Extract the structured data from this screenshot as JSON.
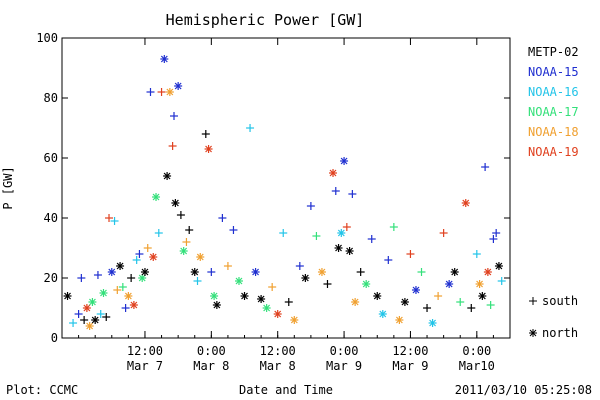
{
  "chart_data": {
    "type": "scatter",
    "title": "Hemispheric Power [GW]",
    "ylabel": "P [GW]",
    "xlabel": "Date and Time",
    "ylim": [
      0,
      100
    ],
    "yticks": [
      "0",
      "20",
      "40",
      "60",
      "80",
      "100"
    ],
    "xlim": [
      "2011-03-06 21:00",
      "2011-03-10 06:00"
    ],
    "xticks": [
      {
        "time": "2011-03-07 12:00",
        "line1": "12:00",
        "line2": "Mar 7"
      },
      {
        "time": "2011-03-08 00:00",
        "line1": "0:00",
        "line2": "Mar 8"
      },
      {
        "time": "2011-03-08 12:00",
        "line1": "12:00",
        "line2": "Mar 8"
      },
      {
        "time": "2011-03-09 00:00",
        "line1": "0:00",
        "line2": "Mar 9"
      },
      {
        "time": "2011-03-09 12:00",
        "line1": "12:00",
        "line2": "Mar 9"
      },
      {
        "time": "2011-03-10 00:00",
        "line1": "0:00",
        "line2": "Mar10"
      }
    ],
    "legend_position": "right",
    "series": [
      {
        "name": "METP-02",
        "color": "#000000"
      },
      {
        "name": "NOAA-15",
        "color": "#1f2fd0"
      },
      {
        "name": "NOAA-16",
        "color": "#22c4e8"
      },
      {
        "name": "NOAA-17",
        "color": "#33e07a"
      },
      {
        "name": "NOAA-18",
        "color": "#f0a030"
      },
      {
        "name": "NOAA-19",
        "color": "#e0401e"
      }
    ],
    "markers": [
      {
        "symbol": "+",
        "label": "south"
      },
      {
        "symbol": "*",
        "label": "north"
      }
    ],
    "points": [
      [
        "2011-03-06 22:00",
        14,
        0,
        "*"
      ],
      [
        "2011-03-06 23:00",
        5,
        2,
        "+"
      ],
      [
        "2011-03-07 00:00",
        8,
        1,
        "+"
      ],
      [
        "2011-03-07 00:30",
        20,
        1,
        "+"
      ],
      [
        "2011-03-07 01:00",
        6,
        0,
        "+"
      ],
      [
        "2011-03-07 01:30",
        10,
        5,
        "*"
      ],
      [
        "2011-03-07 02:00",
        4,
        4,
        "*"
      ],
      [
        "2011-03-07 02:30",
        12,
        3,
        "*"
      ],
      [
        "2011-03-07 03:00",
        6,
        0,
        "*"
      ],
      [
        "2011-03-07 03:30",
        21,
        1,
        "+"
      ],
      [
        "2011-03-07 04:00",
        8,
        2,
        "+"
      ],
      [
        "2011-03-07 04:30",
        15,
        3,
        "*"
      ],
      [
        "2011-03-07 05:00",
        7,
        0,
        "+"
      ],
      [
        "2011-03-07 05:30",
        40,
        5,
        "+"
      ],
      [
        "2011-03-07 06:00",
        22,
        1,
        "*"
      ],
      [
        "2011-03-07 06:30",
        39,
        2,
        "+"
      ],
      [
        "2011-03-07 07:00",
        16,
        4,
        "+"
      ],
      [
        "2011-03-07 07:30",
        24,
        0,
        "*"
      ],
      [
        "2011-03-07 08:00",
        17,
        3,
        "+"
      ],
      [
        "2011-03-07 08:30",
        10,
        1,
        "+"
      ],
      [
        "2011-03-07 09:00",
        14,
        4,
        "*"
      ],
      [
        "2011-03-07 09:30",
        20,
        0,
        "+"
      ],
      [
        "2011-03-07 10:00",
        11,
        5,
        "*"
      ],
      [
        "2011-03-07 10:30",
        26,
        2,
        "+"
      ],
      [
        "2011-03-07 11:00",
        28,
        1,
        "+"
      ],
      [
        "2011-03-07 11:30",
        20,
        3,
        "*"
      ],
      [
        "2011-03-07 12:00",
        22,
        0,
        "*"
      ],
      [
        "2011-03-07 12:30",
        30,
        4,
        "+"
      ],
      [
        "2011-03-07 13:00",
        82,
        1,
        "+"
      ],
      [
        "2011-03-07 13:30",
        27,
        5,
        "*"
      ],
      [
        "2011-03-07 14:00",
        47,
        3,
        "*"
      ],
      [
        "2011-03-07 14:30",
        35,
        2,
        "+"
      ],
      [
        "2011-03-07 15:00",
        82,
        5,
        "+"
      ],
      [
        "2011-03-07 15:30",
        93,
        1,
        "*"
      ],
      [
        "2011-03-07 16:00",
        54,
        0,
        "*"
      ],
      [
        "2011-03-07 16:30",
        82,
        4,
        "*"
      ],
      [
        "2011-03-07 17:00",
        64,
        5,
        "+"
      ],
      [
        "2011-03-07 17:15",
        74,
        1,
        "+"
      ],
      [
        "2011-03-07 17:30",
        45,
        0,
        "*"
      ],
      [
        "2011-03-07 18:00",
        84,
        1,
        "*"
      ],
      [
        "2011-03-07 18:30",
        41,
        0,
        "+"
      ],
      [
        "2011-03-07 19:00",
        29,
        3,
        "*"
      ],
      [
        "2011-03-07 19:30",
        32,
        4,
        "+"
      ],
      [
        "2011-03-07 20:00",
        36,
        0,
        "+"
      ],
      [
        "2011-03-07 21:00",
        22,
        0,
        "*"
      ],
      [
        "2011-03-07 21:30",
        19,
        2,
        "+"
      ],
      [
        "2011-03-07 22:00",
        27,
        4,
        "*"
      ],
      [
        "2011-03-07 23:00",
        68,
        0,
        "+"
      ],
      [
        "2011-03-07 23:30",
        63,
        5,
        "*"
      ],
      [
        "2011-03-08 00:00",
        22,
        1,
        "+"
      ],
      [
        "2011-03-08 00:30",
        14,
        3,
        "*"
      ],
      [
        "2011-03-08 01:00",
        11,
        0,
        "*"
      ],
      [
        "2011-03-08 02:00",
        40,
        1,
        "+"
      ],
      [
        "2011-03-08 03:00",
        24,
        4,
        "+"
      ],
      [
        "2011-03-08 04:00",
        36,
        1,
        "+"
      ],
      [
        "2011-03-08 05:00",
        19,
        3,
        "*"
      ],
      [
        "2011-03-08 06:00",
        14,
        0,
        "*"
      ],
      [
        "2011-03-08 07:00",
        70,
        2,
        "+"
      ],
      [
        "2011-03-08 08:00",
        22,
        1,
        "*"
      ],
      [
        "2011-03-08 09:00",
        13,
        0,
        "*"
      ],
      [
        "2011-03-08 10:00",
        10,
        3,
        "*"
      ],
      [
        "2011-03-08 11:00",
        17,
        4,
        "+"
      ],
      [
        "2011-03-08 12:00",
        8,
        5,
        "*"
      ],
      [
        "2011-03-08 13:00",
        35,
        2,
        "+"
      ],
      [
        "2011-03-08 14:00",
        12,
        0,
        "+"
      ],
      [
        "2011-03-08 15:00",
        6,
        4,
        "*"
      ],
      [
        "2011-03-08 16:00",
        24,
        1,
        "+"
      ],
      [
        "2011-03-08 17:00",
        20,
        0,
        "*"
      ],
      [
        "2011-03-08 18:00",
        44,
        1,
        "+"
      ],
      [
        "2011-03-08 19:00",
        34,
        3,
        "+"
      ],
      [
        "2011-03-08 20:00",
        22,
        4,
        "*"
      ],
      [
        "2011-03-08 21:00",
        18,
        0,
        "+"
      ],
      [
        "2011-03-08 22:00",
        55,
        5,
        "*"
      ],
      [
        "2011-03-08 22:30",
        49,
        1,
        "+"
      ],
      [
        "2011-03-08 23:00",
        30,
        0,
        "*"
      ],
      [
        "2011-03-08 23:30",
        35,
        2,
        "*"
      ],
      [
        "2011-03-09 00:00",
        59,
        1,
        "*"
      ],
      [
        "2011-03-09 00:30",
        37,
        5,
        "+"
      ],
      [
        "2011-03-09 01:00",
        29,
        0,
        "*"
      ],
      [
        "2011-03-09 01:30",
        48,
        1,
        "+"
      ],
      [
        "2011-03-09 02:00",
        12,
        4,
        "*"
      ],
      [
        "2011-03-09 03:00",
        22,
        0,
        "+"
      ],
      [
        "2011-03-09 04:00",
        18,
        3,
        "*"
      ],
      [
        "2011-03-09 05:00",
        33,
        1,
        "+"
      ],
      [
        "2011-03-09 06:00",
        14,
        0,
        "*"
      ],
      [
        "2011-03-09 07:00",
        8,
        2,
        "*"
      ],
      [
        "2011-03-09 08:00",
        26,
        1,
        "+"
      ],
      [
        "2011-03-09 09:00",
        37,
        3,
        "+"
      ],
      [
        "2011-03-09 10:00",
        6,
        4,
        "*"
      ],
      [
        "2011-03-09 11:00",
        12,
        0,
        "*"
      ],
      [
        "2011-03-09 12:00",
        28,
        5,
        "+"
      ],
      [
        "2011-03-09 13:00",
        16,
        1,
        "*"
      ],
      [
        "2011-03-09 14:00",
        22,
        3,
        "+"
      ],
      [
        "2011-03-09 15:00",
        10,
        0,
        "+"
      ],
      [
        "2011-03-09 16:00",
        5,
        2,
        "*"
      ],
      [
        "2011-03-09 17:00",
        14,
        4,
        "+"
      ],
      [
        "2011-03-09 18:00",
        35,
        5,
        "+"
      ],
      [
        "2011-03-09 19:00",
        18,
        1,
        "*"
      ],
      [
        "2011-03-09 20:00",
        22,
        0,
        "*"
      ],
      [
        "2011-03-09 21:00",
        12,
        3,
        "+"
      ],
      [
        "2011-03-09 22:00",
        45,
        5,
        "*"
      ],
      [
        "2011-03-09 23:00",
        10,
        0,
        "+"
      ],
      [
        "2011-03-10 00:00",
        28,
        2,
        "+"
      ],
      [
        "2011-03-10 00:30",
        18,
        4,
        "*"
      ],
      [
        "2011-03-10 01:00",
        14,
        0,
        "*"
      ],
      [
        "2011-03-10 01:30",
        57,
        1,
        "+"
      ],
      [
        "2011-03-10 02:00",
        22,
        5,
        "*"
      ],
      [
        "2011-03-10 02:30",
        11,
        3,
        "+"
      ],
      [
        "2011-03-10 03:00",
        33,
        1,
        "+"
      ],
      [
        "2011-03-10 03:30",
        35,
        1,
        "+"
      ],
      [
        "2011-03-10 04:00",
        24,
        0,
        "*"
      ],
      [
        "2011-03-10 04:30",
        19,
        2,
        "+"
      ]
    ]
  },
  "footer": {
    "left": "Plot: CCMC",
    "center": "Date and Time",
    "right": "2011/03/10 05:25:08"
  }
}
